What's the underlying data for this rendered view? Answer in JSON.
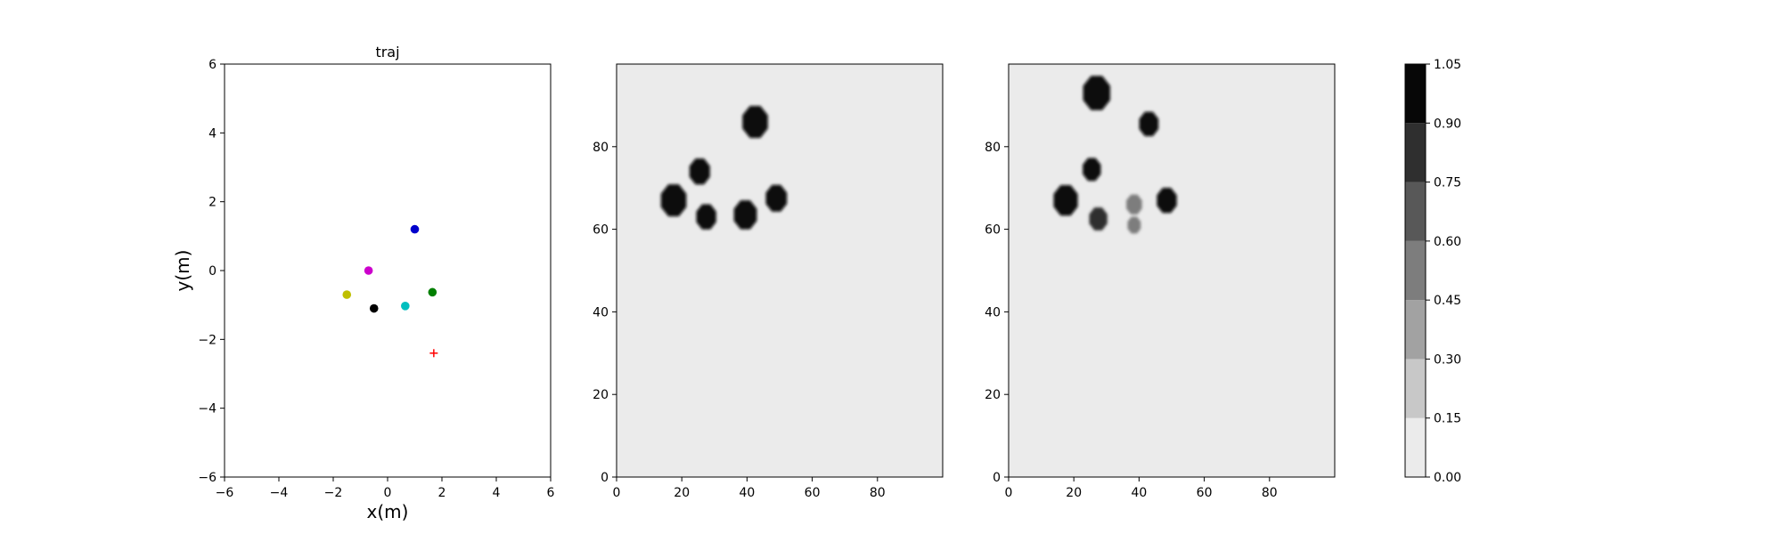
{
  "chart_data": [
    {
      "type": "scatter",
      "title": "traj",
      "xlabel": "x(m)",
      "ylabel": "y(m)",
      "xlim": [
        -6,
        6
      ],
      "ylim": [
        -6,
        6
      ],
      "xticks": [
        "−6",
        "−4",
        "−2",
        "0",
        "2",
        "4",
        "6"
      ],
      "yticks": [
        "−6",
        "−4",
        "−2",
        "0",
        "2",
        "4",
        "6"
      ],
      "grid": false,
      "points": [
        {
          "x": 1.0,
          "y": 1.2,
          "color": "#0000cc",
          "marker": "circle"
        },
        {
          "x": -0.7,
          "y": 0.0,
          "color": "#cc00cc",
          "marker": "circle"
        },
        {
          "x": -1.5,
          "y": -0.7,
          "color": "#bfbf00",
          "marker": "circle"
        },
        {
          "x": -0.5,
          "y": -1.1,
          "color": "#000000",
          "marker": "circle"
        },
        {
          "x": 0.65,
          "y": -1.03,
          "color": "#00bfbf",
          "marker": "circle"
        },
        {
          "x": 1.65,
          "y": -0.63,
          "color": "#007f00",
          "marker": "circle"
        },
        {
          "x": 1.7,
          "y": -2.4,
          "color": "#ff0000",
          "marker": "plus"
        }
      ]
    },
    {
      "type": "heatmap",
      "xlim": [
        0,
        100
      ],
      "ylim": [
        0,
        100
      ],
      "xticks": [
        "0",
        "20",
        "40",
        "60",
        "80"
      ],
      "yticks": [
        "0",
        "20",
        "40",
        "60",
        "80"
      ],
      "background_value": 0.07,
      "blobs": [
        {
          "x": 17.5,
          "y": 67,
          "r": 4.2,
          "value": 1.0
        },
        {
          "x": 25.5,
          "y": 74,
          "r": 3.4,
          "value": 1.0
        },
        {
          "x": 27.5,
          "y": 63,
          "r": 3.3,
          "value": 1.0
        },
        {
          "x": 39.5,
          "y": 63.5,
          "r": 3.8,
          "value": 1.0
        },
        {
          "x": 42.5,
          "y": 86,
          "r": 4.2,
          "value": 1.0
        },
        {
          "x": 49,
          "y": 67.5,
          "r": 3.5,
          "value": 1.0
        }
      ]
    },
    {
      "type": "heatmap",
      "xlim": [
        0,
        100
      ],
      "ylim": [
        0,
        100
      ],
      "xticks": [
        "0",
        "20",
        "40",
        "60",
        "80"
      ],
      "yticks": [
        "0",
        "20",
        "40",
        "60",
        "80"
      ],
      "background_value": 0.07,
      "blobs": [
        {
          "x": 27,
          "y": 93,
          "r": 4.5,
          "value": 1.0
        },
        {
          "x": 43,
          "y": 85.5,
          "r": 3.2,
          "value": 0.95
        },
        {
          "x": 25.5,
          "y": 74.5,
          "r": 3.0,
          "value": 0.92
        },
        {
          "x": 17.5,
          "y": 67,
          "r": 4.0,
          "value": 1.0
        },
        {
          "x": 27.5,
          "y": 62.5,
          "r": 3.0,
          "value": 0.85
        },
        {
          "x": 38.5,
          "y": 66,
          "r": 2.6,
          "value": 0.5
        },
        {
          "x": 38.5,
          "y": 61,
          "r": 2.2,
          "value": 0.45
        },
        {
          "x": 48.5,
          "y": 67,
          "r": 3.3,
          "value": 1.0
        }
      ]
    }
  ],
  "colorbar": {
    "levels": [
      0.0,
      0.15,
      0.3,
      0.45,
      0.6,
      0.75,
      0.9,
      1.05
    ],
    "labels": [
      "0.00",
      "0.15",
      "0.30",
      "0.45",
      "0.60",
      "0.75",
      "0.90",
      "1.05"
    ],
    "colors": [
      "#ebebeb",
      "#c8c8c8",
      "#a2a2a2",
      "#7d7d7d",
      "#585858",
      "#2f2f2f",
      "#070707"
    ]
  }
}
